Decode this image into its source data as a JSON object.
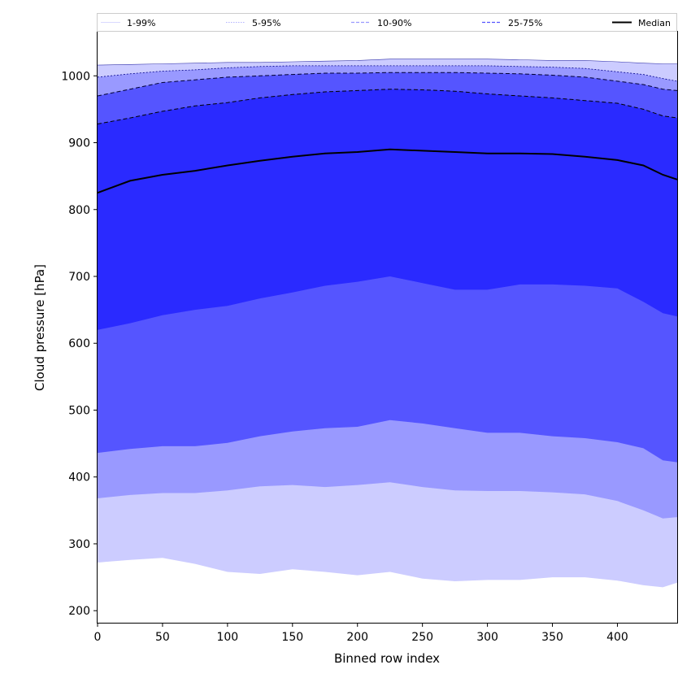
{
  "chart_data": {
    "type": "area",
    "xlabel": "Binned row index",
    "ylabel": "Cloud pressure [hPa]",
    "xlim": [
      0,
      446
    ],
    "ylim": [
      182,
      1066
    ],
    "xticks": [
      0,
      50,
      100,
      150,
      200,
      250,
      300,
      350,
      400
    ],
    "yticks": [
      200,
      300,
      400,
      500,
      600,
      700,
      800,
      900,
      1000
    ],
    "x": [
      0,
      25,
      50,
      75,
      100,
      125,
      150,
      175,
      200,
      225,
      250,
      275,
      300,
      325,
      350,
      375,
      400,
      420,
      435,
      446
    ],
    "bands": [
      {
        "name": "1-99%",
        "color": "#ccccff",
        "lower": [
          272,
          276,
          279,
          270,
          258,
          255,
          262,
          258,
          253,
          258,
          248,
          244,
          246,
          246,
          250,
          250,
          245,
          238,
          235,
          242
        ],
        "upper": [
          1016,
          1017,
          1018,
          1019,
          1020,
          1020,
          1021,
          1022,
          1023,
          1025,
          1025,
          1025,
          1025,
          1024,
          1023,
          1023,
          1021,
          1019,
          1018,
          1018
        ]
      },
      {
        "name": "5-95%",
        "color": "#9999ff",
        "lower": [
          368,
          373,
          376,
          376,
          380,
          386,
          388,
          385,
          388,
          392,
          385,
          380,
          379,
          379,
          377,
          374,
          364,
          350,
          338,
          340
        ],
        "upper": [
          998,
          1003,
          1007,
          1009,
          1012,
          1014,
          1015,
          1015,
          1015,
          1015,
          1015,
          1015,
          1015,
          1014,
          1013,
          1011,
          1006,
          1002,
          996,
          992
        ]
      },
      {
        "name": "10-90%",
        "color": "#5555ff",
        "lower": [
          436,
          442,
          446,
          446,
          451,
          461,
          468,
          473,
          475,
          485,
          480,
          473,
          466,
          466,
          461,
          458,
          452,
          443,
          425,
          422
        ],
        "upper": [
          970,
          980,
          990,
          994,
          998,
          1000,
          1002,
          1004,
          1004,
          1005,
          1005,
          1005,
          1004,
          1003,
          1001,
          998,
          992,
          987,
          980,
          978
        ]
      },
      {
        "name": "25-75%",
        "color": "#2a2aff",
        "lower": [
          620,
          630,
          642,
          650,
          656,
          667,
          676,
          686,
          692,
          700,
          690,
          680,
          680,
          688,
          688,
          686,
          682,
          662,
          645,
          640
        ],
        "upper": [
          928,
          937,
          947,
          955,
          960,
          967,
          972,
          976,
          978,
          980,
          979,
          977,
          973,
          970,
          967,
          963,
          959,
          950,
          940,
          937
        ]
      }
    ],
    "median": {
      "name": "Median",
      "values": [
        825,
        843,
        852,
        858,
        866,
        873,
        879,
        884,
        886,
        890,
        888,
        886,
        884,
        884,
        883,
        879,
        874,
        866,
        852,
        845
      ]
    },
    "legend": {
      "placement": "top",
      "entries": [
        {
          "label": "1-99%",
          "style": "thin-solid",
          "color": "#ccccff"
        },
        {
          "label": "5-95%",
          "style": "thin-dotted",
          "color": "#9999ff"
        },
        {
          "label": "10-90%",
          "style": "dashed",
          "color": "#9999ff"
        },
        {
          "label": "25-75%",
          "style": "dashed",
          "color": "#5555ff"
        },
        {
          "label": "Median",
          "style": "solid-thick",
          "color": "#000000"
        }
      ]
    },
    "grid": false
  }
}
